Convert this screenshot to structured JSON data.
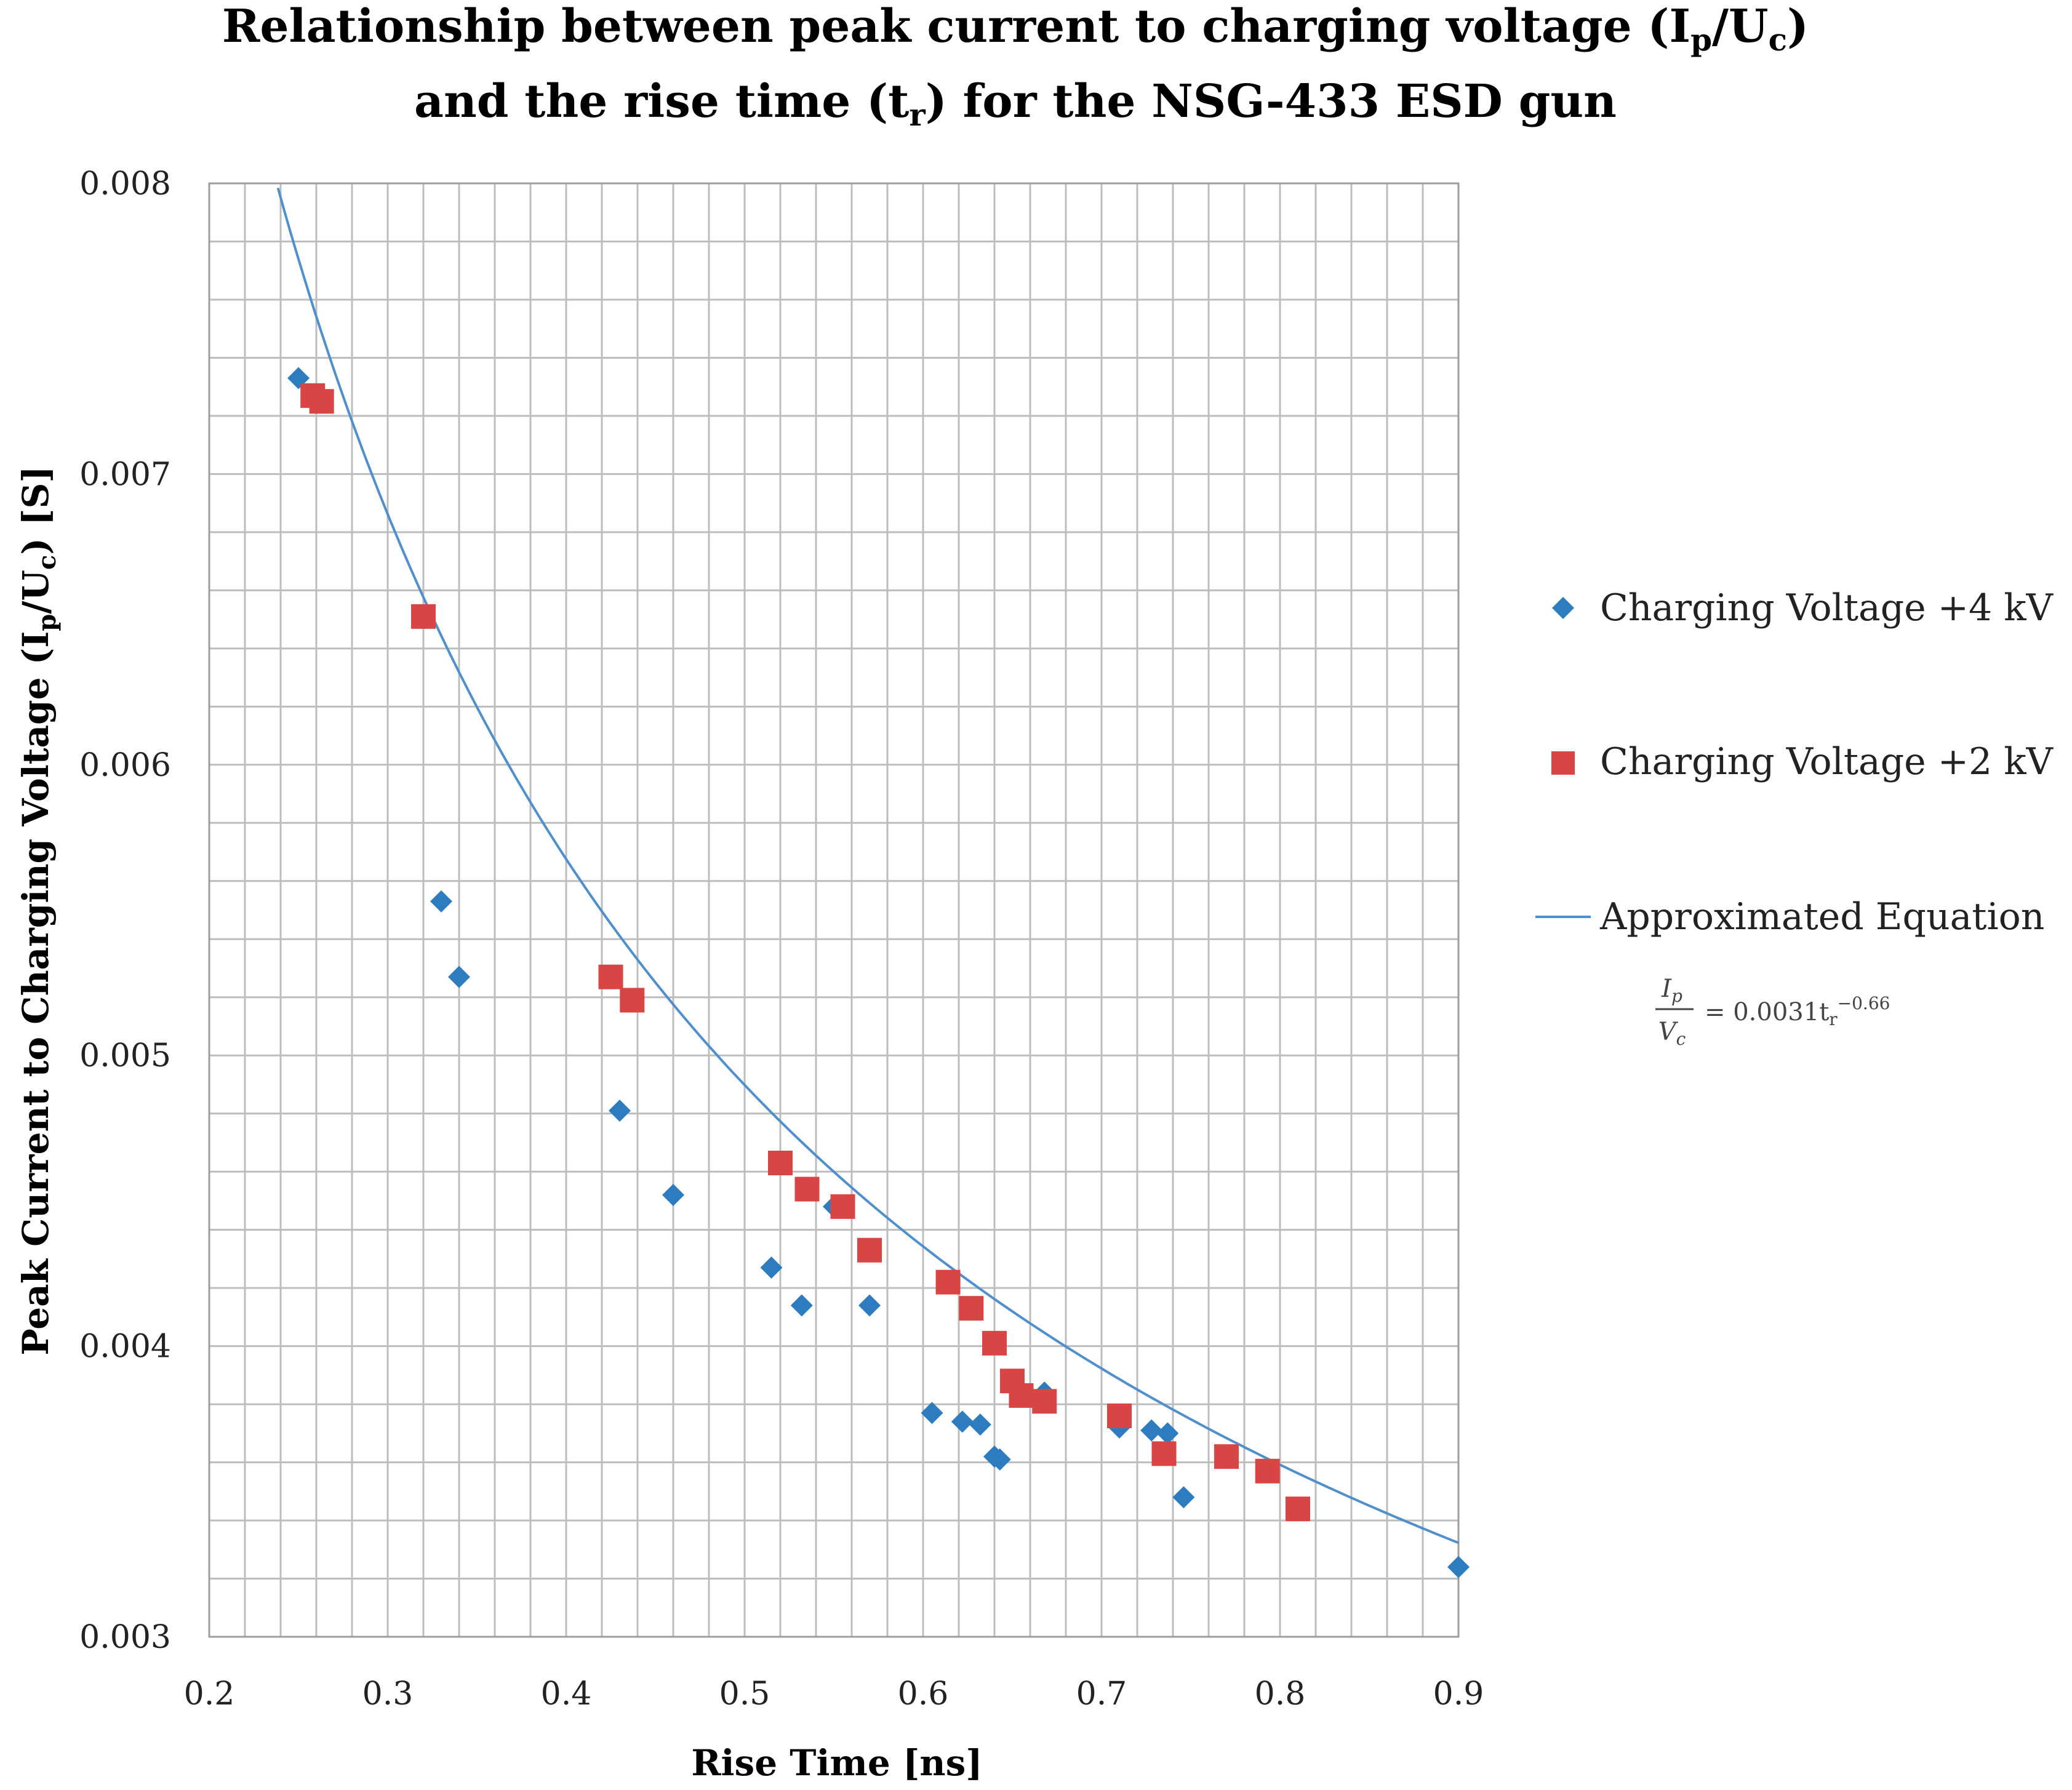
{
  "colors": {
    "series_4kv": "#2E7CC0",
    "series_2kv": "#D94545",
    "fit_line": "#4F8FCB",
    "grid": "#BDBDBD",
    "axis": "#9E9E9E"
  },
  "chart_data": {
    "type": "scatter",
    "title_line1_pre": "Relationship between peak current to charging voltage (I",
    "title_line1_sub1": "p",
    "title_line1_mid": "/U",
    "title_line1_sub2": "c",
    "title_line1_post": ")",
    "title_line2_pre": "and the rise time (t",
    "title_line2_sub": "r",
    "title_line2_post": ") for the NSG-433 ESD gun",
    "xlabel": "Rise Time [ns]",
    "ylabel_pre": "Peak Current to Charging Voltage (I",
    "ylabel_sub1": "p",
    "ylabel_mid": "/U",
    "ylabel_sub2": "c",
    "ylabel_post": ") [S]",
    "xlim": [
      0.2,
      0.9
    ],
    "ylim": [
      0.003,
      0.008
    ],
    "x_ticks": [
      0.2,
      0.3,
      0.4,
      0.5,
      0.6,
      0.7,
      0.8,
      0.9
    ],
    "x_tick_labels": [
      "0.2",
      "0.3",
      "0.4",
      "0.5",
      "0.6",
      "0.7",
      "0.8",
      "0.9"
    ],
    "y_ticks": [
      0.003,
      0.004,
      0.005,
      0.006,
      0.007,
      0.008
    ],
    "y_tick_labels": [
      "0.003",
      "0.004",
      "0.005",
      "0.006",
      "0.007",
      "0.008"
    ],
    "grid": true,
    "minor_grid_x_step": 0.02,
    "minor_grid_y_step": 0.0002,
    "legend_position": "right",
    "series": [
      {
        "name": "Charging Voltage +4 kV",
        "marker": "diamond",
        "points": [
          [
            0.25,
            0.00733
          ],
          [
            0.33,
            0.00553
          ],
          [
            0.34,
            0.00527
          ],
          [
            0.43,
            0.00481
          ],
          [
            0.46,
            0.00452
          ],
          [
            0.515,
            0.00427
          ],
          [
            0.532,
            0.00414
          ],
          [
            0.55,
            0.00448
          ],
          [
            0.57,
            0.00414
          ],
          [
            0.605,
            0.00377
          ],
          [
            0.622,
            0.00374
          ],
          [
            0.632,
            0.00373
          ],
          [
            0.64,
            0.00362
          ],
          [
            0.643,
            0.00361
          ],
          [
            0.668,
            0.00384
          ],
          [
            0.71,
            0.00372
          ],
          [
            0.728,
            0.00371
          ],
          [
            0.737,
            0.0037
          ],
          [
            0.746,
            0.00348
          ],
          [
            0.9,
            0.00324
          ]
        ]
      },
      {
        "name": "Charging Voltage +2 kV",
        "marker": "square",
        "points": [
          [
            0.258,
            0.00727
          ],
          [
            0.263,
            0.00725
          ],
          [
            0.32,
            0.00651
          ],
          [
            0.425,
            0.00527
          ],
          [
            0.437,
            0.00519
          ],
          [
            0.52,
            0.00463
          ],
          [
            0.535,
            0.00454
          ],
          [
            0.555,
            0.00448
          ],
          [
            0.57,
            0.00433
          ],
          [
            0.614,
            0.00422
          ],
          [
            0.627,
            0.00413
          ],
          [
            0.64,
            0.00401
          ],
          [
            0.65,
            0.00388
          ],
          [
            0.655,
            0.00383
          ],
          [
            0.668,
            0.00381
          ],
          [
            0.71,
            0.00376
          ],
          [
            0.735,
            0.00363
          ],
          [
            0.77,
            0.00362
          ],
          [
            0.793,
            0.00357
          ],
          [
            0.81,
            0.00344
          ]
        ]
      },
      {
        "name": "Approximated Equation",
        "marker": "line",
        "equation": {
          "coefficient": 0.0031,
          "exponent": -0.66,
          "x_from": 0.2,
          "x_to": 0.9
        }
      }
    ],
    "equation_label": {
      "num_base": "I",
      "num_sub": "p",
      "den_base": "V",
      "den_sub": "c",
      "rhs": "= 0.0031t",
      "rhs_sub": "r",
      "rhs_sup": "−0.66"
    }
  }
}
